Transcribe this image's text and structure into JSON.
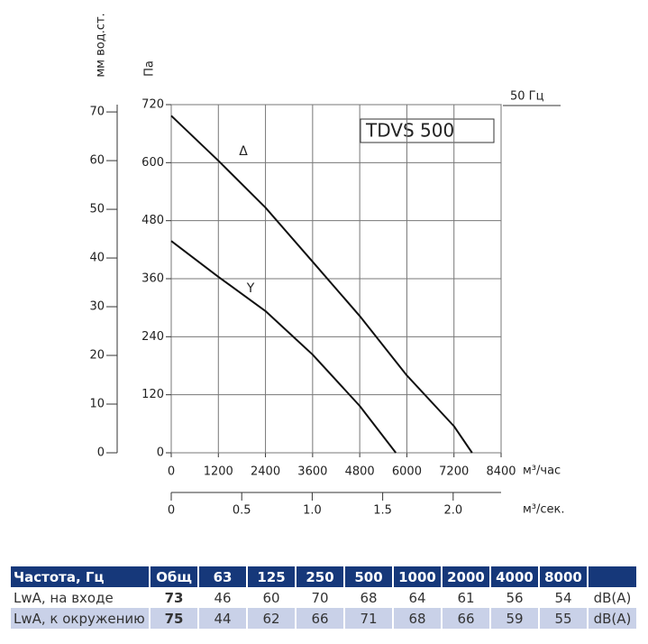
{
  "chart_data": {
    "type": "line",
    "title": "TDVS 500",
    "frequency_label": "50 Гц",
    "y_label": "Па",
    "y2_label": "мм вод.ст.",
    "x_label": "м³/час",
    "x2_label": "м³/сек.",
    "xlim": [
      0,
      8400
    ],
    "xticks": [
      0,
      1200,
      2400,
      3600,
      4800,
      6000,
      7200,
      8400
    ],
    "ylim": [
      0,
      720
    ],
    "yticks": [
      0,
      120,
      240,
      360,
      480,
      600,
      720
    ],
    "y2lim": [
      0,
      71.5
    ],
    "y2ticks": [
      0,
      10,
      20,
      30,
      40,
      50,
      60,
      70
    ],
    "x2lim": [
      0,
      2.34
    ],
    "x2ticks": [
      0,
      0.5,
      {
        "value": 1.0,
        "label": "1.0"
      },
      1.5,
      {
        "value": 2.0,
        "label": "2.0"
      }
    ],
    "grid": true,
    "series": [
      {
        "name": "Δ",
        "color": "#111111",
        "x": [
          0,
          1200,
          2400,
          3600,
          4800,
          6000,
          7200,
          7660
        ],
        "values": [
          697,
          604,
          507,
          395,
          283,
          160,
          55,
          0
        ]
      },
      {
        "name": "Y",
        "color": "#111111",
        "x": [
          0,
          1200,
          2400,
          3600,
          4800,
          5720
        ],
        "values": [
          438,
          364,
          293,
          203,
          97,
          0
        ]
      }
    ]
  },
  "table": {
    "header": [
      "Частота, Гц",
      "Общ",
      "63",
      "125",
      "250",
      "500",
      "1000",
      "2000",
      "4000",
      "8000",
      ""
    ],
    "rows": [
      [
        "LwA, на входе",
        "73",
        "46",
        "60",
        "70",
        "68",
        "64",
        "61",
        "56",
        "54",
        "dB(A)"
      ],
      [
        "LwA, к окружению",
        "75",
        "44",
        "62",
        "66",
        "71",
        "68",
        "66",
        "59",
        "55",
        "dB(A)"
      ]
    ]
  }
}
